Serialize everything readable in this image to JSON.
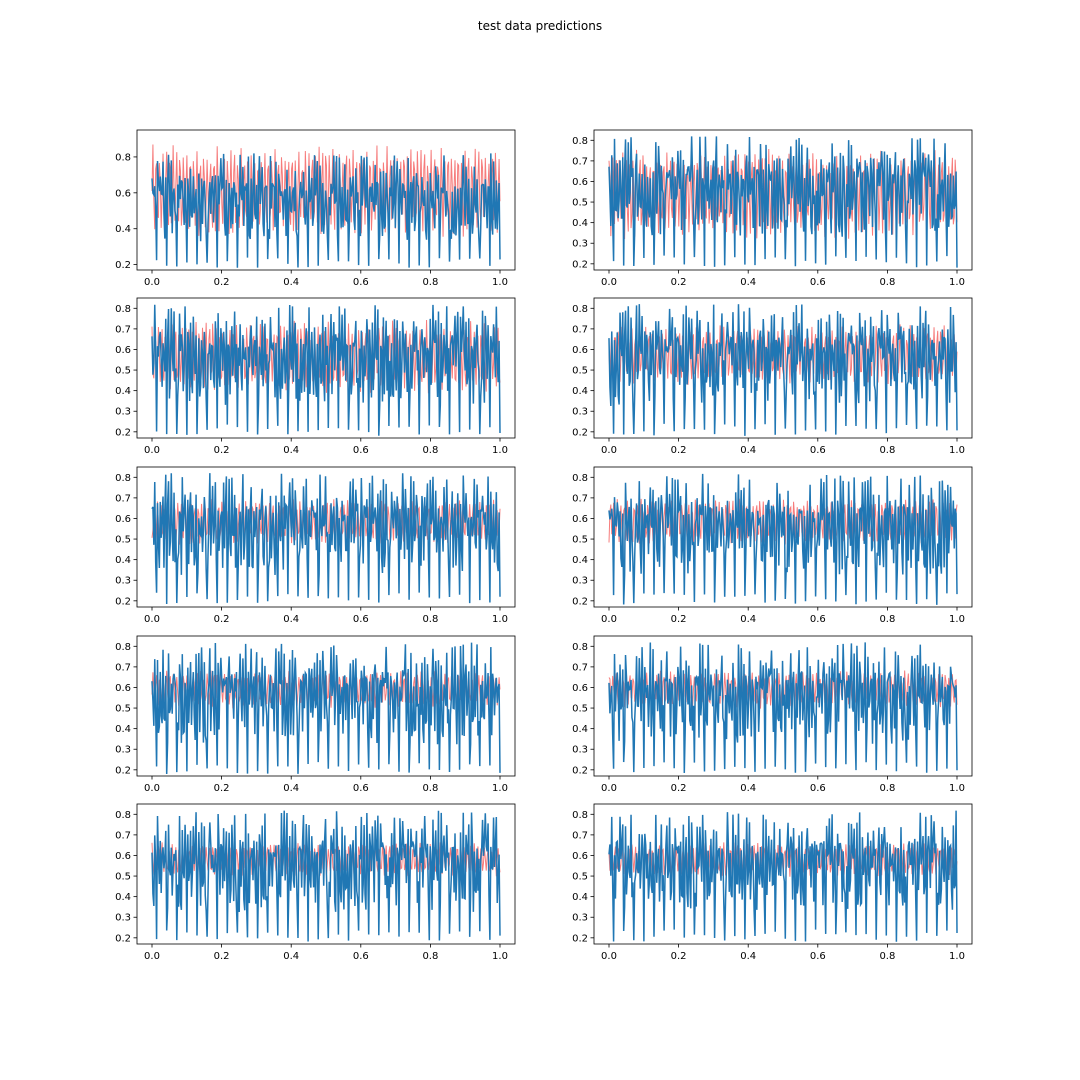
{
  "figure": {
    "title": "test data predictions"
  },
  "colors": {
    "prediction": "#2077b4",
    "target": "#f45b5b",
    "axes": "#000000"
  },
  "chart_data": [
    {
      "type": "line",
      "row": 0,
      "col": 0,
      "xlim": [
        0.0,
        1.0
      ],
      "ylim": [
        0.17,
        0.95
      ],
      "xticks": [
        0.0,
        0.2,
        0.4,
        0.6,
        0.8,
        1.0
      ],
      "yticks": [
        0.2,
        0.4,
        0.6,
        0.8
      ],
      "series": [
        {
          "role": "target",
          "range": [
            0.3,
            0.92
          ]
        },
        {
          "role": "prediction",
          "range": [
            0.18,
            0.82
          ]
        }
      ]
    },
    {
      "type": "line",
      "row": 0,
      "col": 1,
      "xlim": [
        0.0,
        1.0
      ],
      "ylim": [
        0.17,
        0.85
      ],
      "xticks": [
        0.0,
        0.2,
        0.4,
        0.6,
        0.8,
        1.0
      ],
      "yticks": [
        0.2,
        0.3,
        0.4,
        0.5,
        0.6,
        0.7,
        0.8
      ],
      "series": [
        {
          "role": "target",
          "range": [
            0.28,
            0.8
          ]
        },
        {
          "role": "prediction",
          "range": [
            0.18,
            0.82
          ]
        }
      ]
    },
    {
      "type": "line",
      "row": 1,
      "col": 0,
      "xlim": [
        0.0,
        1.0
      ],
      "ylim": [
        0.17,
        0.85
      ],
      "xticks": [
        0.0,
        0.2,
        0.4,
        0.6,
        0.8,
        1.0
      ],
      "yticks": [
        0.2,
        0.3,
        0.4,
        0.5,
        0.6,
        0.7,
        0.8
      ],
      "series": [
        {
          "role": "target",
          "range": [
            0.35,
            0.78
          ]
        },
        {
          "role": "prediction",
          "range": [
            0.18,
            0.82
          ]
        }
      ]
    },
    {
      "type": "line",
      "row": 1,
      "col": 1,
      "xlim": [
        0.0,
        1.0
      ],
      "ylim": [
        0.17,
        0.85
      ],
      "xticks": [
        0.0,
        0.2,
        0.4,
        0.6,
        0.8,
        1.0
      ],
      "yticks": [
        0.2,
        0.3,
        0.4,
        0.5,
        0.6,
        0.7,
        0.8
      ],
      "series": [
        {
          "role": "target",
          "range": [
            0.4,
            0.75
          ]
        },
        {
          "role": "prediction",
          "range": [
            0.18,
            0.82
          ]
        }
      ]
    },
    {
      "type": "line",
      "row": 2,
      "col": 0,
      "xlim": [
        0.0,
        1.0
      ],
      "ylim": [
        0.17,
        0.85
      ],
      "xticks": [
        0.0,
        0.2,
        0.4,
        0.6,
        0.8,
        1.0
      ],
      "yticks": [
        0.2,
        0.3,
        0.4,
        0.5,
        0.6,
        0.7,
        0.8
      ],
      "series": [
        {
          "role": "target",
          "range": [
            0.45,
            0.72
          ]
        },
        {
          "role": "prediction",
          "range": [
            0.18,
            0.82
          ]
        }
      ]
    },
    {
      "type": "line",
      "row": 2,
      "col": 1,
      "xlim": [
        0.0,
        1.0
      ],
      "ylim": [
        0.17,
        0.85
      ],
      "xticks": [
        0.0,
        0.2,
        0.4,
        0.6,
        0.8,
        1.0
      ],
      "yticks": [
        0.2,
        0.3,
        0.4,
        0.5,
        0.6,
        0.7,
        0.8
      ],
      "series": [
        {
          "role": "target",
          "range": [
            0.45,
            0.72
          ]
        },
        {
          "role": "prediction",
          "range": [
            0.18,
            0.82
          ]
        }
      ]
    },
    {
      "type": "line",
      "row": 3,
      "col": 0,
      "xlim": [
        0.0,
        1.0
      ],
      "ylim": [
        0.17,
        0.85
      ],
      "xticks": [
        0.0,
        0.2,
        0.4,
        0.6,
        0.8,
        1.0
      ],
      "yticks": [
        0.2,
        0.3,
        0.4,
        0.5,
        0.6,
        0.7,
        0.8
      ],
      "series": [
        {
          "role": "target",
          "range": [
            0.48,
            0.7
          ]
        },
        {
          "role": "prediction",
          "range": [
            0.18,
            0.82
          ]
        }
      ]
    },
    {
      "type": "line",
      "row": 3,
      "col": 1,
      "xlim": [
        0.0,
        1.0
      ],
      "ylim": [
        0.17,
        0.85
      ],
      "xticks": [
        0.0,
        0.2,
        0.4,
        0.6,
        0.8,
        1.0
      ],
      "yticks": [
        0.2,
        0.3,
        0.4,
        0.5,
        0.6,
        0.7,
        0.8
      ],
      "series": [
        {
          "role": "target",
          "range": [
            0.48,
            0.7
          ]
        },
        {
          "role": "prediction",
          "range": [
            0.18,
            0.82
          ]
        }
      ]
    },
    {
      "type": "line",
      "row": 4,
      "col": 0,
      "xlim": [
        0.0,
        1.0
      ],
      "ylim": [
        0.17,
        0.85
      ],
      "xticks": [
        0.0,
        0.2,
        0.4,
        0.6,
        0.8,
        1.0
      ],
      "yticks": [
        0.2,
        0.3,
        0.4,
        0.5,
        0.6,
        0.7,
        0.8
      ],
      "series": [
        {
          "role": "target",
          "range": [
            0.48,
            0.68
          ]
        },
        {
          "role": "prediction",
          "range": [
            0.18,
            0.82
          ]
        }
      ]
    },
    {
      "type": "line",
      "row": 4,
      "col": 1,
      "xlim": [
        0.0,
        1.0
      ],
      "ylim": [
        0.17,
        0.85
      ],
      "xticks": [
        0.0,
        0.2,
        0.4,
        0.6,
        0.8,
        1.0
      ],
      "yticks": [
        0.2,
        0.3,
        0.4,
        0.5,
        0.6,
        0.7,
        0.8
      ],
      "series": [
        {
          "role": "target",
          "range": [
            0.48,
            0.68
          ]
        },
        {
          "role": "prediction",
          "range": [
            0.18,
            0.82
          ]
        }
      ]
    }
  ]
}
